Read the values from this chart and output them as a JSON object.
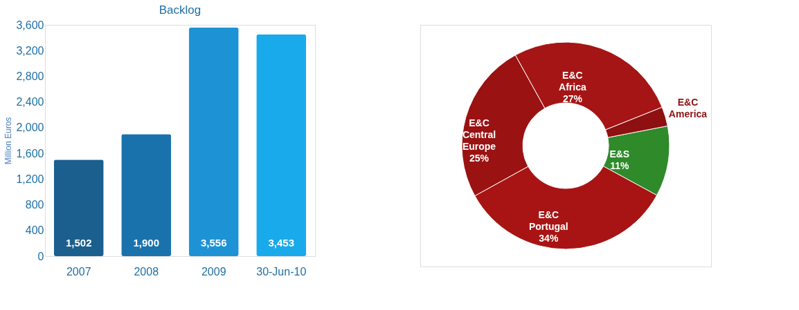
{
  "chart_data": [
    {
      "type": "bar",
      "title": "Backlog",
      "ylabel": "Million Euros",
      "categories": [
        "2007",
        "2008",
        "2009",
        "30-Jun-10"
      ],
      "values": [
        1502,
        1900,
        3556,
        3453
      ],
      "colors": [
        "#1b5f8f",
        "#1a72ad",
        "#1d93d6",
        "#19aaec"
      ],
      "value_labels": [
        "1,502",
        "1,900",
        "3,556",
        "3,453"
      ],
      "ylim": [
        0,
        3600
      ],
      "yticks": [
        {
          "value": 0,
          "label": "0"
        },
        {
          "value": 400,
          "label": "400"
        },
        {
          "value": 800,
          "label": "800"
        },
        {
          "value": 1200,
          "label": "1,200"
        },
        {
          "value": 1600,
          "label": "1,600"
        },
        {
          "value": 2000,
          "label": "2,000"
        },
        {
          "value": 2400,
          "label": "2,400"
        },
        {
          "value": 2800,
          "label": "2,800"
        },
        {
          "value": 3200,
          "label": "3,200"
        },
        {
          "value": 3600,
          "label": "3,600"
        }
      ],
      "grid": false
    },
    {
      "type": "donut",
      "categories": [
        "E&S",
        "E&C Portugal",
        "E&C Central Europe",
        "E&C Africa",
        "E&C America"
      ],
      "values": [
        11,
        34,
        25,
        27,
        3
      ],
      "colors": [
        "#2f8a2a",
        "#a81414",
        "#9a1212",
        "#a51515",
        "#8e1010"
      ],
      "value_labels": [
        "11%",
        "34%",
        "25%",
        "27%",
        null
      ]
    }
  ]
}
